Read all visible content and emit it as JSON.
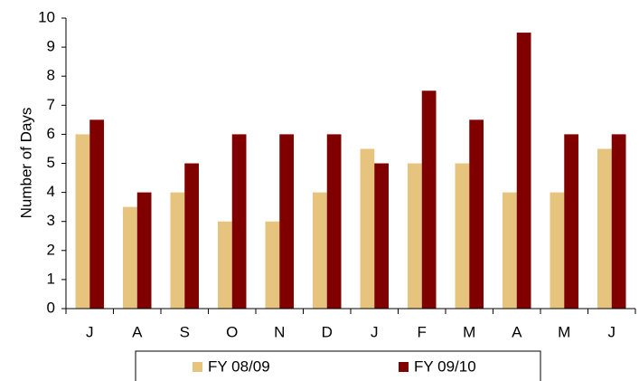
{
  "chart_data": {
    "type": "bar",
    "y_label": "Number of Days",
    "categories": [
      "J",
      "A",
      "S",
      "O",
      "N",
      "D",
      "J",
      "F",
      "M",
      "A",
      "M",
      "J"
    ],
    "series": [
      {
        "name": "FY 08/09",
        "color": "#e6c47e",
        "values": [
          6,
          3.5,
          4,
          3,
          3,
          4,
          5.5,
          5,
          5,
          4,
          4,
          5.5
        ]
      },
      {
        "name": "FY 09/10",
        "color": "#800000",
        "values": [
          6.5,
          4,
          5,
          6,
          6,
          6,
          5,
          7.5,
          6.5,
          9.5,
          6,
          6
        ]
      }
    ],
    "ylim": [
      0,
      10
    ],
    "yticks": [
      0,
      1,
      2,
      3,
      4,
      5,
      6,
      7,
      8,
      9,
      10
    ],
    "grid": false
  }
}
